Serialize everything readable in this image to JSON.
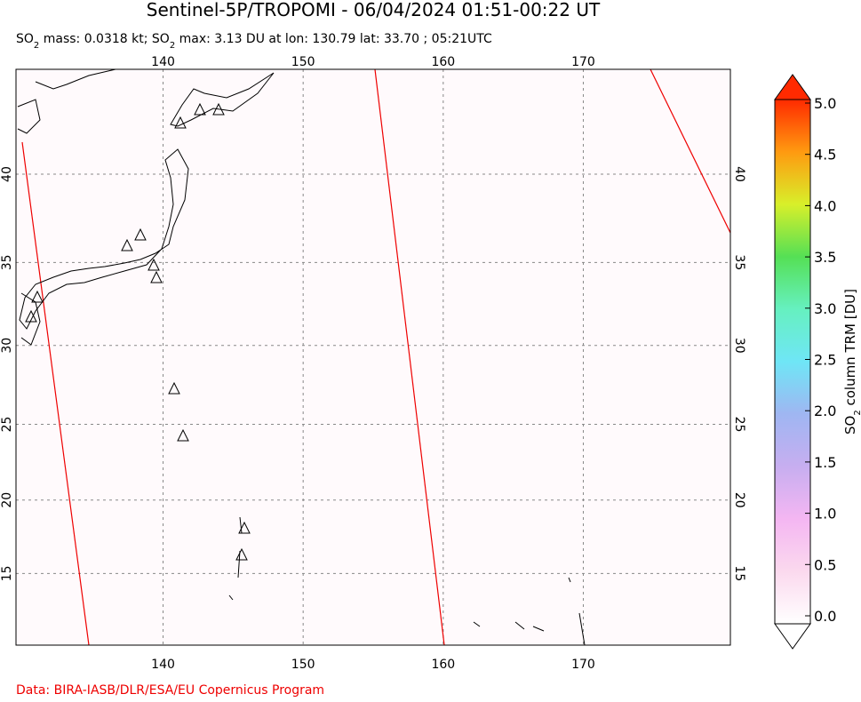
{
  "header": {
    "title": "Sentinel-5P/TROPOMI - 06/04/2024 01:51-00:22 UT",
    "subtitle_parts": [
      "SO",
      "2",
      " mass: 0.0318 kt; SO",
      "2",
      " max: 3.13 DU at lon: 130.79 lat: 33.70 ; 05:21UTC"
    ]
  },
  "map": {
    "lonlim": [
      129.5,
      180.5
    ],
    "latlim": [
      10,
      45.5
    ],
    "lon_ticks": [
      140,
      150,
      160,
      170
    ],
    "lat_ticks": [
      40,
      35,
      30,
      25,
      20,
      15
    ],
    "grid": true
  },
  "colorbar": {
    "clim": [
      0,
      5
    ],
    "ticks": [
      {
        "value": 0,
        "label": "0.0"
      },
      {
        "value": 0.5,
        "label": "0.5"
      },
      {
        "value": 1,
        "label": "1.0"
      },
      {
        "value": 1.5,
        "label": "1.5"
      },
      {
        "value": 2,
        "label": "2.0"
      },
      {
        "value": 2.5,
        "label": "2.5"
      },
      {
        "value": 3,
        "label": "3.0"
      },
      {
        "value": 3.5,
        "label": "3.5"
      },
      {
        "value": 4,
        "label": "4.0"
      },
      {
        "value": 4.5,
        "label": "4.5"
      },
      {
        "value": 5,
        "label": "5.0"
      }
    ],
    "label_parts": [
      "SO",
      "2",
      " column TRM [DU]"
    ]
  },
  "footer": {
    "credit": "Data: BIRA-IASB/DLR/ESA/EU Copernicus Program"
  }
}
